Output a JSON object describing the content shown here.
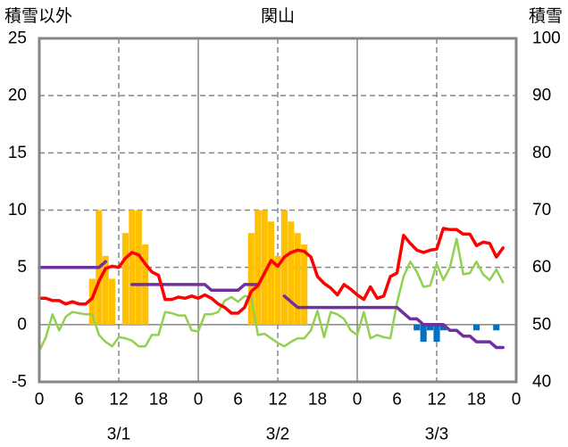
{
  "chart_data": {
    "type": "line",
    "title": "関山",
    "ylabel": "積雪以外",
    "y2label": "積雪",
    "ylim": [
      -5,
      25
    ],
    "y2lim": [
      40,
      100
    ],
    "y_tick_labels": [
      "25",
      "20",
      "15",
      "10",
      "5",
      "0",
      "-5"
    ],
    "y2_tick_labels": [
      "100",
      "90",
      "80",
      "70",
      "60",
      "50",
      "40"
    ],
    "x_tick_labels": [
      "0",
      "6",
      "12",
      "18",
      "0",
      "6",
      "12",
      "18",
      "0",
      "6",
      "12",
      "18",
      "0"
    ],
    "x_dates": [
      "3/1",
      "3/2",
      "3/3"
    ],
    "grid": true,
    "series": [
      {
        "type": "bar",
        "axis": "left",
        "color": "#FFC000",
        "values": {
          "3/1": [
            null,
            null,
            null,
            null,
            null,
            null,
            null,
            null,
            4,
            10,
            6,
            4,
            null,
            8,
            10,
            10,
            7,
            null,
            null,
            null,
            null,
            null,
            null,
            null
          ],
          "3/2": [
            null,
            null,
            null,
            null,
            null,
            null,
            null,
            null,
            8,
            10,
            10,
            9,
            6,
            10,
            9,
            8,
            7,
            null,
            null,
            null,
            null,
            null,
            null,
            null
          ]
        }
      },
      {
        "type": "bar",
        "axis": "left",
        "color": "#0070C0",
        "values": {
          "3/3": [
            null,
            null,
            null,
            null,
            null,
            null,
            null,
            null,
            null,
            -0.5,
            -1.5,
            -0.5,
            -1.5,
            -0.5,
            null,
            null,
            null,
            null,
            -0.5,
            null,
            null,
            -0.5,
            null,
            null
          ]
        }
      },
      {
        "type": "line",
        "axis": "left",
        "color": "#92D050",
        "values": {
          "3/1": [
            -2.3,
            -1.1,
            0.9,
            -0.5,
            0.7,
            1.1,
            1.0,
            0.9,
            0.9,
            -0.9,
            -1.5,
            -1.9,
            -1.1,
            -1.2,
            -1.4,
            -1.9,
            -1.9,
            -0.9,
            -0.9,
            1.1,
            1.0,
            0.8,
            0.8,
            -0.5
          ],
          "3/2": [
            -0.6,
            0.9,
            0.9,
            1.1,
            2.1,
            2.4,
            2.0,
            2.5,
            2.4,
            -0.9,
            -0.8,
            -1.2,
            -1.6,
            -1.9,
            -1.5,
            -1.2,
            -1.2,
            -0.5,
            1.2,
            -1.1,
            1.1,
            0.9,
            0.5,
            -0.5
          ],
          "3/3": [
            -0.9,
            1.1,
            -1.2,
            -0.9,
            -1.1,
            -1.2,
            1.9,
            4.2,
            5.5,
            4.6,
            3.3,
            3.4,
            5.3,
            3.9,
            5.0,
            7.5,
            4.4,
            4.5,
            5.5,
            4.4,
            3.9,
            4.8,
            3.7
          ]
        }
      },
      {
        "type": "line",
        "axis": "right",
        "color": "#7030A0",
        "values": {
          "3/1": [
            60,
            60,
            60,
            60,
            60,
            60,
            60,
            60,
            60,
            60,
            61,
            null,
            null,
            null,
            57,
            57,
            57,
            57,
            57,
            57,
            57,
            57,
            57,
            57
          ],
          "3/2": [
            57,
            57,
            56,
            56,
            56,
            56,
            56,
            57,
            57,
            57,
            null,
            null,
            null,
            55,
            54,
            53,
            53,
            53,
            53,
            53,
            53,
            53,
            53,
            53
          ],
          "3/3": [
            53,
            53,
            53,
            53,
            53,
            53,
            53,
            52,
            51,
            51,
            50,
            50,
            50,
            50,
            49,
            49,
            48,
            48,
            47,
            47,
            47,
            46,
            46
          ]
        }
      },
      {
        "type": "line",
        "axis": "left",
        "color": "#FF0000",
        "values": {
          "3/1": [
            2.3,
            2.3,
            2.1,
            2.1,
            1.8,
            2.0,
            1.8,
            1.8,
            2.3,
            3.8,
            4.9,
            5.1,
            5.0,
            5.8,
            6.3,
            6.1,
            5.3,
            4.6,
            4.3,
            2.2,
            2.2,
            2.4,
            2.3,
            2.5
          ],
          "3/2": [
            2.3,
            2.6,
            2.3,
            1.8,
            1.5,
            1.0,
            1.0,
            1.5,
            2.9,
            3.4,
            4.5,
            5.6,
            5.1,
            5.9,
            6.3,
            6.5,
            6.4,
            5.9,
            4.2,
            3.6,
            3.2,
            2.6,
            3.5,
            3.1
          ],
          "3/3": [
            2.6,
            2.2,
            3.3,
            2.3,
            2.5,
            4.2,
            4.5,
            7.8,
            7.1,
            6.5,
            6.3,
            6.5,
            6.6,
            8.4,
            8.3,
            8.3,
            7.9,
            7.9,
            6.9,
            7.2,
            7.1,
            5.9,
            6.7
          ]
        }
      }
    ]
  }
}
